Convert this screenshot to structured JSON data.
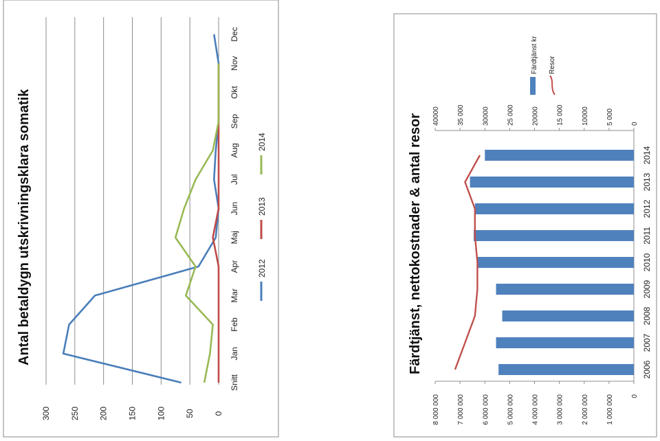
{
  "chart_data": [
    {
      "type": "line",
      "title": "Antal betaldygn utskrivningsklara somatik",
      "categories": [
        "Snitt",
        "Jan",
        "Feb",
        "Mar",
        "Apr",
        "Maj",
        "Jun",
        "Jul",
        "Aug",
        "Sep",
        "Okt",
        "Nov",
        "Dec"
      ],
      "ylim": [
        0,
        300
      ],
      "yticks": [
        "0",
        "50",
        "100",
        "150",
        "200",
        "250",
        "300"
      ],
      "grid": true,
      "legend": "bottom",
      "series": [
        {
          "name": "2012",
          "color": "#4a7ebb",
          "values": [
            65,
            270,
            260,
            215,
            35,
            5,
            0,
            8,
            5,
            0,
            0,
            0,
            8
          ]
        },
        {
          "name": "2013",
          "color": "#be4b48",
          "values": [
            0,
            0,
            0,
            0,
            0,
            10,
            0,
            0,
            0,
            0,
            0,
            0,
            null
          ]
        },
        {
          "name": "2014",
          "color": "#98b954",
          "values": [
            25,
            15,
            10,
            57,
            40,
            75,
            60,
            40,
            10,
            0,
            0,
            0,
            null
          ]
        }
      ]
    },
    {
      "type": "bar",
      "title": "Färdtjänst, nettokostnader & antal resor",
      "categories": [
        "2006",
        "2007",
        "2008",
        "2009",
        "2010",
        "2011",
        "2012",
        "2013",
        "2014"
      ],
      "ylim": [
        0,
        8000000
      ],
      "ylim_secondary": [
        0,
        40000
      ],
      "yticks": [
        "0",
        "1 000 000",
        "2 000 000",
        "3 000 000",
        "4 000 000",
        "5 000 000",
        "6 000 000",
        "7 000 000",
        "8 000 000"
      ],
      "yticks_secondary": [
        "0",
        "5 000",
        "10000",
        "15 000",
        "20000",
        "25 000",
        "30000",
        "35 000",
        "40000"
      ],
      "legend": "top-right",
      "series": [
        {
          "name": "Färdtjänst kr",
          "color": "#4f81bd",
          "axis": "primary",
          "values": [
            5450000,
            5550000,
            5300000,
            5550000,
            6300000,
            6450000,
            6400000,
            6600000,
            6000000
          ]
        },
        {
          "name": "Resor",
          "color": "#c0504d",
          "axis": "secondary",
          "values": [
            36000,
            34000,
            32000,
            31500,
            31500,
            32000,
            32000,
            34000,
            31000
          ]
        }
      ]
    }
  ]
}
